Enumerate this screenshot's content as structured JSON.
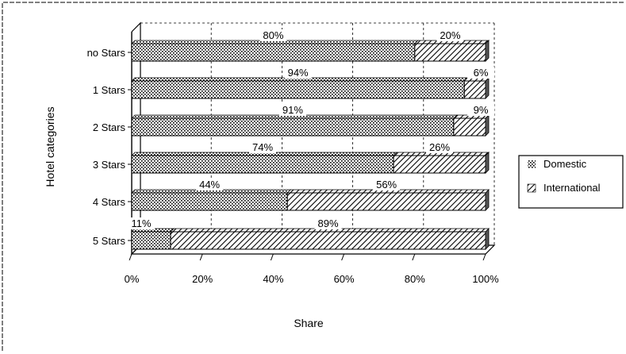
{
  "chart_data": {
    "type": "bar",
    "orientation": "horizontal",
    "stacked": "percent",
    "title": "",
    "xlabel": "Share",
    "ylabel": "Hotel categories",
    "xlim": [
      0,
      100
    ],
    "xticks": [
      "0%",
      "20%",
      "40%",
      "60%",
      "80%",
      "100%"
    ],
    "categories": [
      "no Stars",
      "1 Stars",
      "2 Stars",
      "3 Stars",
      "4 Stars",
      "5 Stars"
    ],
    "series": [
      {
        "name": "Domestic",
        "values": [
          80,
          94,
          91,
          74,
          44,
          11
        ],
        "labels": [
          "80%",
          "94%",
          "91%",
          "74%",
          "44%",
          "11%"
        ]
      },
      {
        "name": "International",
        "values": [
          20,
          6,
          9,
          26,
          56,
          89
        ],
        "labels": [
          "20%",
          "6%",
          "9%",
          "26%",
          "56%",
          "89%"
        ]
      }
    ],
    "legend_position": "right",
    "grid": true
  }
}
